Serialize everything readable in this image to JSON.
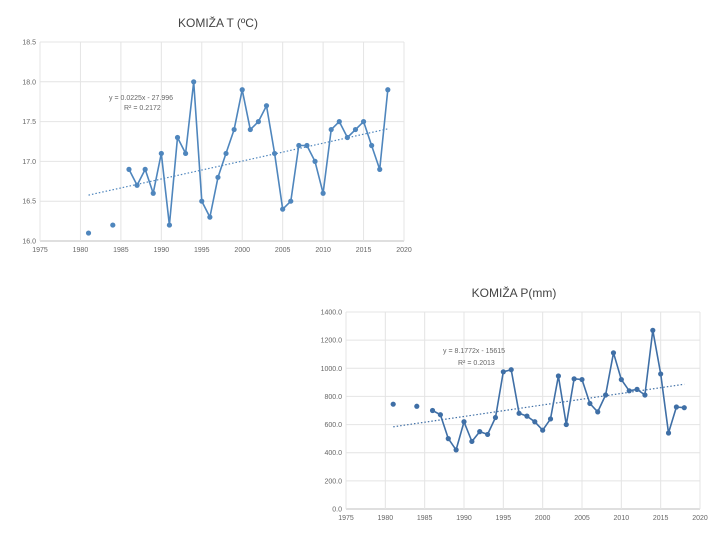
{
  "chart_data": [
    {
      "type": "line",
      "title": "KOMIŽA T (ºC)",
      "xlabel": "",
      "ylabel": "",
      "xlim": [
        1975,
        2020
      ],
      "ylim": [
        16.0,
        18.5
      ],
      "xticks": [
        1975,
        1980,
        1985,
        1990,
        1995,
        2000,
        2005,
        2010,
        2015,
        2020
      ],
      "yticks": [
        16.0,
        16.5,
        17.0,
        17.5,
        18.0,
        18.5
      ],
      "xtick_labels": [
        "1975",
        "1980",
        "1985",
        "1990",
        "1995",
        "2000",
        "2005",
        "2010",
        "2015",
        "2020"
      ],
      "ytick_labels": [
        "16.0",
        "16.5",
        "17.0",
        "17.5",
        "18.0",
        "18.5"
      ],
      "series": [
        {
          "name": "T",
          "color": "#4f86bd",
          "x": [
            1981,
            1984,
            1986,
            1987,
            1988,
            1989,
            1990,
            1991,
            1992,
            1993,
            1994,
            1995,
            1996,
            1997,
            1998,
            1999,
            2000,
            2001,
            2002,
            2003,
            2004,
            2005,
            2006,
            2007,
            2008,
            2009,
            2010,
            2011,
            2012,
            2013,
            2014,
            2015,
            2016,
            2017,
            2018
          ],
          "values": [
            16.1,
            16.2,
            16.9,
            16.7,
            16.9,
            16.6,
            17.1,
            16.2,
            17.3,
            17.1,
            18.0,
            16.5,
            16.3,
            16.8,
            17.1,
            17.4,
            17.9,
            17.4,
            17.5,
            17.7,
            17.1,
            16.4,
            16.5,
            17.2,
            17.2,
            17.0,
            16.6,
            17.4,
            17.5,
            17.3,
            17.4,
            17.5,
            17.2,
            16.9,
            17.9
          ]
        }
      ],
      "trendline": {
        "slope": 0.0225,
        "intercept": -27.996,
        "x_range": [
          1981,
          2018
        ],
        "color": "#4f86bd",
        "equation_label": "y = 0.0225x - 27.996",
        "r2_label": "R² = 0.2172"
      }
    },
    {
      "type": "line",
      "title": "KOMIŽA P(mm)",
      "xlabel": "",
      "ylabel": "",
      "xlim": [
        1975,
        2020
      ],
      "ylim": [
        0,
        1400
      ],
      "xticks": [
        1975,
        1980,
        1985,
        1990,
        1995,
        2000,
        2005,
        2010,
        2015,
        2020
      ],
      "yticks": [
        0,
        200,
        400,
        600,
        800,
        1000,
        1200,
        1400
      ],
      "xtick_labels": [
        "1975",
        "1980",
        "1985",
        "1990",
        "1995",
        "2000",
        "2005",
        "2010",
        "2015",
        "2020"
      ],
      "ytick_labels": [
        "0.0",
        "200.0",
        "400.0",
        "600.0",
        "800.0",
        "1000.0",
        "1200.0",
        "1400.0"
      ],
      "series": [
        {
          "name": "P",
          "color": "#3f6fa6",
          "x": [
            1981,
            1984,
            1986,
            1987,
            1988,
            1989,
            1990,
            1991,
            1992,
            1993,
            1994,
            1995,
            1996,
            1997,
            1998,
            1999,
            2000,
            2001,
            2002,
            2003,
            2004,
            2005,
            2006,
            2007,
            2008,
            2009,
            2010,
            2011,
            2012,
            2013,
            2014,
            2015,
            2016,
            2017,
            2018
          ],
          "values": [
            745,
            730,
            700,
            670,
            500,
            420,
            620,
            480,
            550,
            530,
            650,
            975,
            990,
            680,
            660,
            620,
            560,
            640,
            945,
            600,
            925,
            920,
            750,
            690,
            810,
            1110,
            920,
            840,
            850,
            810,
            1270,
            960,
            540,
            725,
            720
          ]
        }
      ],
      "trendline": {
        "slope": 8.1772,
        "intercept": -15615,
        "x_range": [
          1981,
          2018
        ],
        "color": "#3f6fa6",
        "equation_label": "y = 8.1772x - 15615",
        "r2_label": "R² = 0.2013"
      }
    }
  ]
}
